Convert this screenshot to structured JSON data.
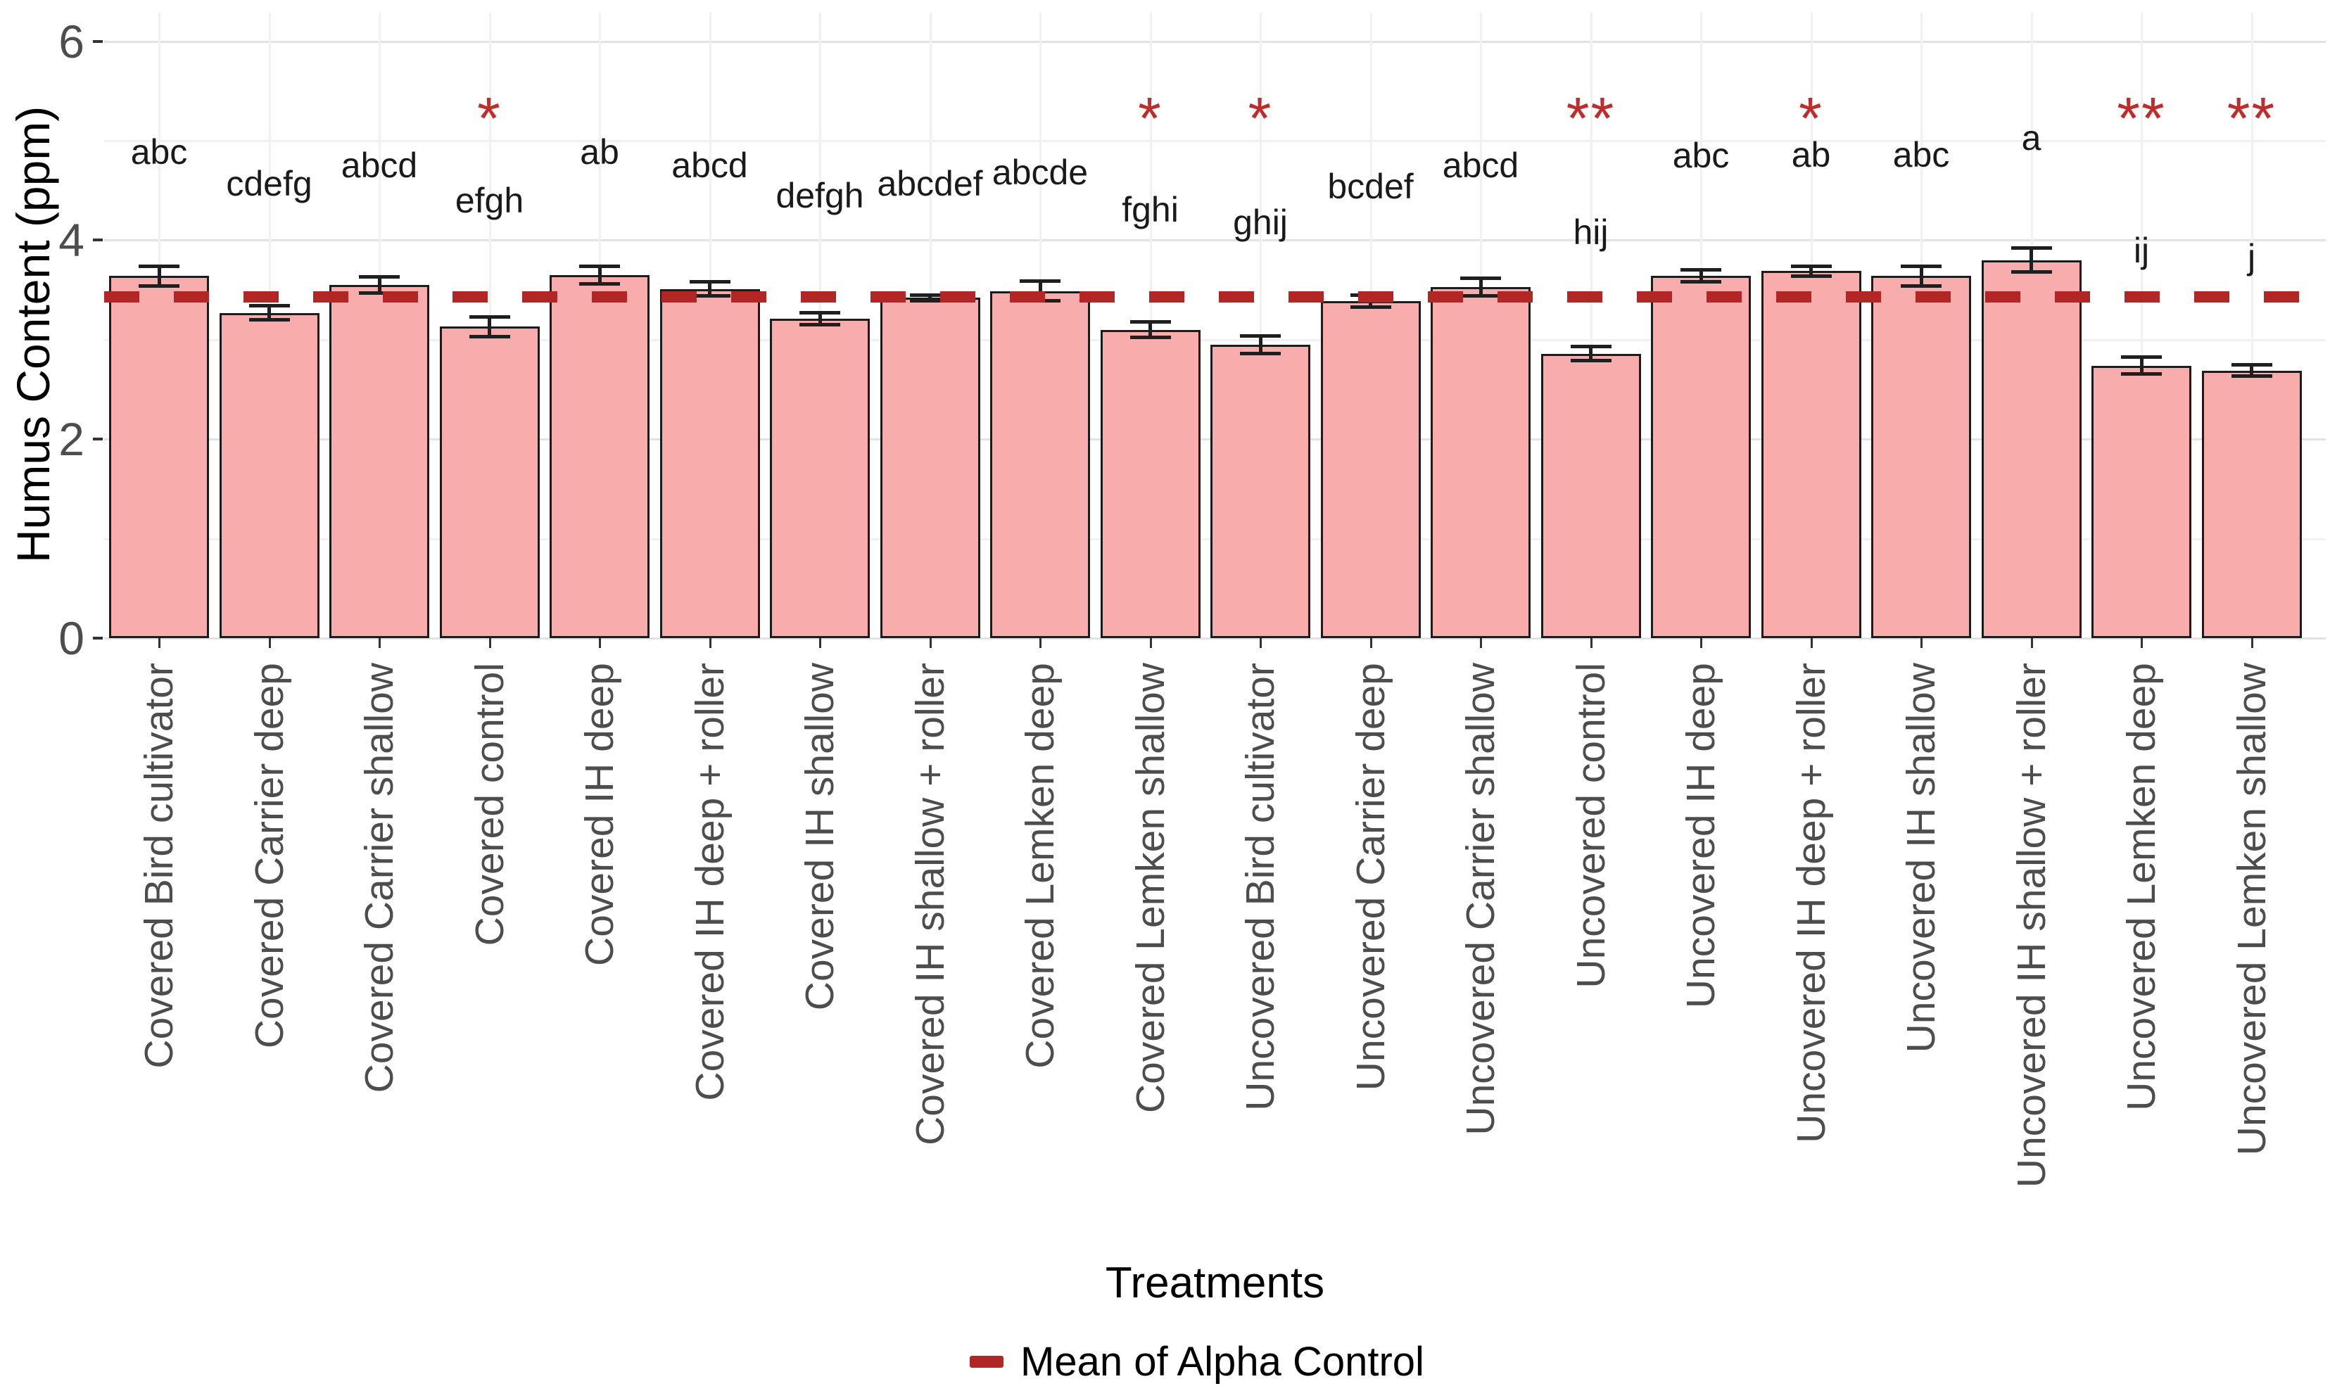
{
  "y_axis": {
    "title": "Humus Content (ppm)",
    "tick_labels": [
      "0",
      "2",
      "4",
      "6"
    ]
  },
  "x_axis": {
    "title": "Treatments"
  },
  "legend": {
    "label": "Mean of Alpha Control"
  },
  "colors": {
    "bar_fill": "#F8ACAC",
    "bar_stroke": "#1C1C1C",
    "error_bar": "#1F1F1F",
    "mean_line": "#B22626",
    "asterisk": "#C02B2B",
    "grid_major": "#E3E3E3",
    "grid_minor": "#F1F1F1",
    "axis_text": "#4D4D4D",
    "tick_mark": "#333333"
  },
  "chart_data": {
    "type": "bar",
    "title": "",
    "xlabel": "Treatments",
    "ylabel": "Humus Content (ppm)",
    "ylim": [
      0,
      6.3
    ],
    "yticks_major": [
      0,
      2,
      4,
      6
    ],
    "yticks_minor": [
      1,
      3,
      5
    ],
    "grid": true,
    "legend_position": "bottom",
    "mean_line": {
      "label": "Mean of Alpha Control",
      "value": 3.43,
      "style": "dashed"
    },
    "categories": [
      "Covered Bird cultivator",
      "Covered Carrier deep",
      "Covered Carrier shallow",
      "Covered control",
      "Covered IH deep",
      "Covered IH deep + roller",
      "Covered IH shallow",
      "Covered IH shallow + roller",
      "Covered Lemken deep",
      "Covered Lemken shallow",
      "Uncovered Bird cultivator",
      "Uncovered Carrier deep",
      "Uncovered Carrier shallow",
      "Uncovered control",
      "Uncovered IH deep",
      "Uncovered IH deep + roller",
      "Uncovered IH shallow",
      "Uncovered IH shallow + roller",
      "Uncovered Lemken deep",
      "Uncovered Lemken shallow"
    ],
    "values": [
      3.64,
      3.27,
      3.55,
      3.13,
      3.65,
      3.51,
      3.21,
      3.42,
      3.49,
      3.1,
      2.95,
      3.39,
      3.53,
      2.86,
      3.64,
      3.69,
      3.64,
      3.8,
      2.74,
      2.69
    ],
    "errors": [
      0.1,
      0.07,
      0.08,
      0.1,
      0.09,
      0.07,
      0.06,
      0.03,
      0.1,
      0.08,
      0.09,
      0.06,
      0.09,
      0.07,
      0.06,
      0.05,
      0.1,
      0.12,
      0.085,
      0.055
    ],
    "sig_letters": [
      "abc",
      "cdefg",
      "abcd",
      "efgh",
      "ab",
      "abcd",
      "defgh",
      "abcdef",
      "abcde",
      "fghi",
      "ghij",
      "bcdef",
      "abcd",
      "hij",
      "abc",
      "ab",
      "abc",
      "a",
      "ij",
      "j"
    ],
    "sig_letter_heights": [
      4.89,
      4.57,
      4.75,
      4.4,
      4.89,
      4.75,
      4.45,
      4.57,
      4.68,
      4.31,
      4.18,
      4.54,
      4.75,
      4.08,
      4.85,
      4.86,
      4.86,
      5.03,
      3.9,
      3.83
    ],
    "asterisks": [
      "",
      "",
      "",
      "*",
      "",
      "",
      "",
      "",
      "",
      "*",
      "*",
      "",
      "",
      "**",
      "",
      "*",
      "",
      "",
      "**",
      "**"
    ],
    "asterisk_height": 5.32
  }
}
